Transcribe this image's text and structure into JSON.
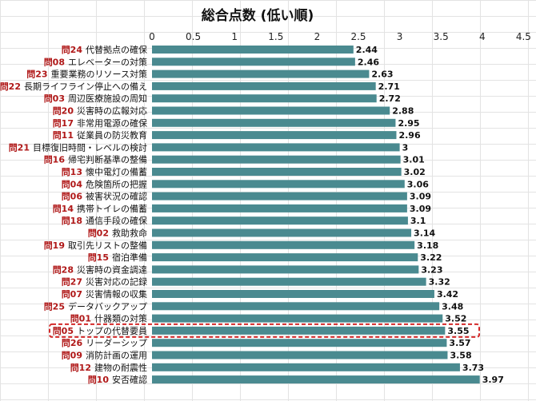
{
  "chart_data": {
    "type": "bar",
    "orientation": "horizontal",
    "title": "総合点数 (低い順)",
    "xlim": [
      0,
      4.5
    ],
    "ticks": [
      "0",
      "0.5",
      "1",
      "1.5",
      "2",
      "2.5",
      "3",
      "3.5",
      "4",
      "4.5"
    ],
    "tick_values": [
      0,
      0.5,
      1,
      1.5,
      2,
      2.5,
      3,
      3.5,
      4,
      4.5
    ],
    "question_prefix": "問",
    "categories": [
      {
        "num": "24",
        "name": "代替拠点の確保"
      },
      {
        "num": "08",
        "name": "エレベーターの対策"
      },
      {
        "num": "23",
        "name": "重要業務のリソース対策"
      },
      {
        "num": "22",
        "name": "長期ライフライン停止への備え"
      },
      {
        "num": "03",
        "name": "周辺医療施設の周知"
      },
      {
        "num": "20",
        "name": "災害時の広報対応"
      },
      {
        "num": "17",
        "name": "非常用電源の確保"
      },
      {
        "num": "11",
        "name": "従業員の防災教育"
      },
      {
        "num": "21",
        "name": "目標復旧時間・レベルの検討"
      },
      {
        "num": "16",
        "name": "帰宅判断基準の整備"
      },
      {
        "num": "13",
        "name": "懐中電灯の備蓄"
      },
      {
        "num": "04",
        "name": "危険箇所の把握"
      },
      {
        "num": "06",
        "name": "被害状況の確認"
      },
      {
        "num": "14",
        "name": "携帯トイレの備蓄"
      },
      {
        "num": "18",
        "name": "通信手段の確保"
      },
      {
        "num": "02",
        "name": "救助救命"
      },
      {
        "num": "19",
        "name": "取引先リストの整備"
      },
      {
        "num": "15",
        "name": "宿泊準備"
      },
      {
        "num": "28",
        "name": "災害時の資金調達"
      },
      {
        "num": "27",
        "name": "災害対応の記録"
      },
      {
        "num": "07",
        "name": "災害情報の収集"
      },
      {
        "num": "25",
        "name": "データバックアップ"
      },
      {
        "num": "01",
        "name": "什器類の対策"
      },
      {
        "num": "05",
        "name": "トップの代替要員"
      },
      {
        "num": "26",
        "name": "リーダーシップ"
      },
      {
        "num": "09",
        "name": "消防計画の運用"
      },
      {
        "num": "12",
        "name": "建物の耐震性"
      },
      {
        "num": "10",
        "name": "安否確認"
      }
    ],
    "values": [
      2.44,
      2.46,
      2.63,
      2.71,
      2.72,
      2.88,
      2.95,
      2.96,
      3,
      3.01,
      3.02,
      3.06,
      3.09,
      3.09,
      3.1,
      3.14,
      3.18,
      3.22,
      3.23,
      3.32,
      3.42,
      3.48,
      3.52,
      3.55,
      3.57,
      3.58,
      3.73,
      3.97
    ],
    "value_labels": [
      "2.44",
      "2.46",
      "2.63",
      "2.71",
      "2.72",
      "2.88",
      "2.95",
      "2.96",
      "3",
      "3.01",
      "3.02",
      "3.06",
      "3.09",
      "3.09",
      "3.1",
      "3.14",
      "3.18",
      "3.22",
      "3.23",
      "3.32",
      "3.42",
      "3.48",
      "3.52",
      "3.55",
      "3.57",
      "3.58",
      "3.73",
      "3.97"
    ],
    "highlight_index": 23,
    "bar_color": "#4a8a90",
    "highlight_color": "#d42a2a",
    "question_color": "#b01818",
    "grid": true
  }
}
